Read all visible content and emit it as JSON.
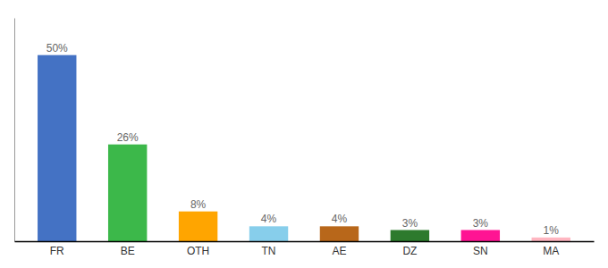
{
  "chart_data": {
    "type": "bar",
    "categories": [
      "FR",
      "BE",
      "OTH",
      "TN",
      "AE",
      "DZ",
      "SN",
      "MA"
    ],
    "values": [
      50,
      26,
      8,
      4,
      4,
      3,
      3,
      1
    ],
    "value_labels": [
      "50%",
      "26%",
      "8%",
      "4%",
      "4%",
      "3%",
      "3%",
      "1%"
    ],
    "colors": [
      "#4472C4",
      "#3CB84A",
      "#FFA500",
      "#87CEEB",
      "#B8671A",
      "#2D7A2D",
      "#FF1493",
      "#FFB6C1"
    ],
    "ylim": [
      0,
      60
    ],
    "data_labels": true,
    "tick_labels": "x",
    "grid": false
  }
}
